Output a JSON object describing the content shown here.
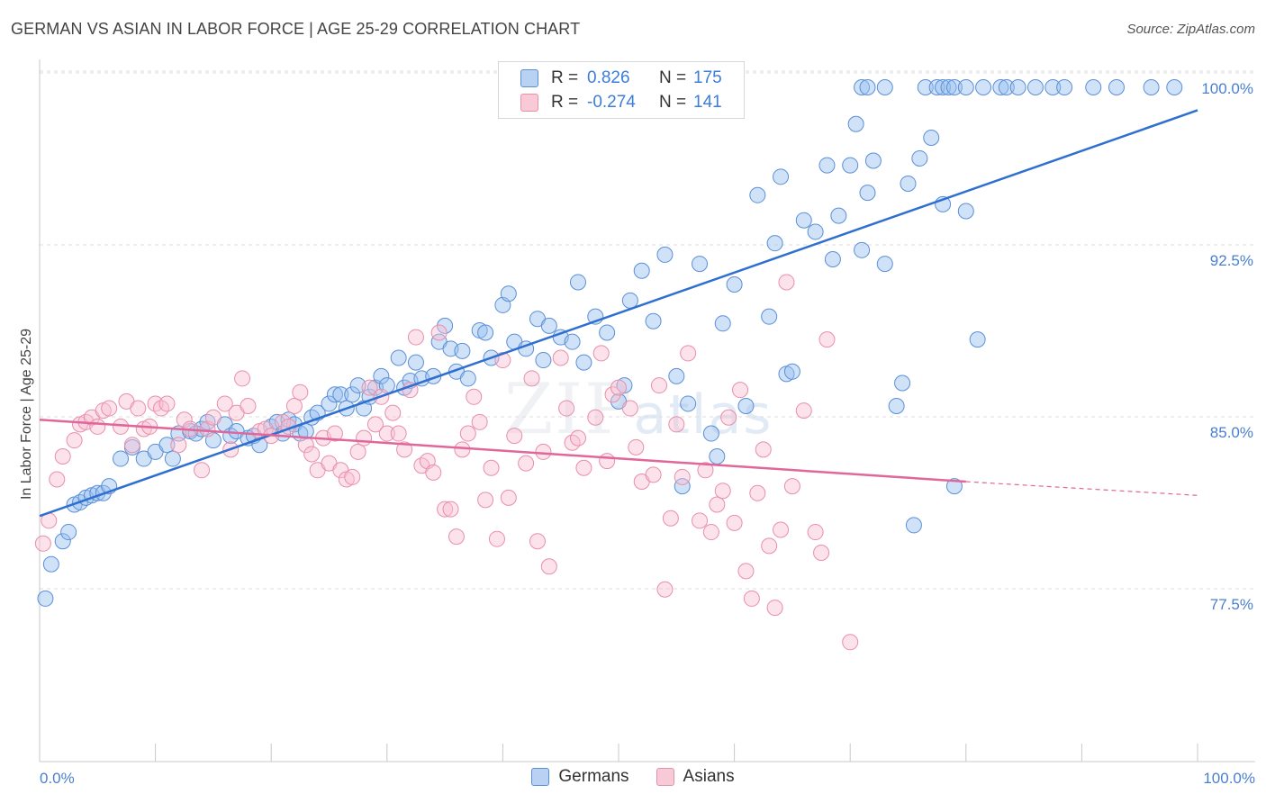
{
  "title": "GERMAN VS ASIAN IN LABOR FORCE | AGE 25-29 CORRELATION CHART",
  "source": "Source: ZipAtlas.com",
  "watermark": {
    "zip": "ZIP",
    "atlas": "atlas"
  },
  "stats": [
    {
      "r_label": "R =",
      "r_value": "0.826",
      "n_label": "N =",
      "n_value": "175",
      "color": "#5b8fd6",
      "fill": "#b9d1f2"
    },
    {
      "r_label": "R =",
      "r_value": "-0.274",
      "n_label": "N =",
      "n_value": "141",
      "color": "#e88fa9",
      "fill": "#f8cad8"
    }
  ],
  "legend": [
    {
      "label": "Germans",
      "color": "#5b8fd6",
      "fill": "#b9d1f2"
    },
    {
      "label": "Asians",
      "color": "#e88fa9",
      "fill": "#f8cad8"
    }
  ],
  "chart_data": {
    "type": "scatter",
    "title": "GERMAN VS ASIAN IN LABOR FORCE | AGE 25-29 CORRELATION CHART",
    "xlabel": "",
    "ylabel": "In Labor Force | Age 25-29",
    "xlim": [
      0,
      100
    ],
    "ylim": [
      71.5,
      100.8
    ],
    "x_tick_labels": [
      "0.0%",
      "100.0%"
    ],
    "y_ticks": [
      77.5,
      85.0,
      92.5,
      100.0
    ],
    "y_tick_labels": [
      "77.5%",
      "85.0%",
      "92.5%",
      "100.0%"
    ],
    "grid": "horizontal dashed",
    "colors": {
      "germans": "#3b7dd8",
      "asians": "#e0679a"
    },
    "series": [
      {
        "name": "Germans",
        "trend": {
          "x": [
            0,
            100
          ],
          "y": [
            81.3,
            99.0
          ]
        },
        "points": [
          [
            0.5,
            77.7
          ],
          [
            1.0,
            79.2
          ],
          [
            2.0,
            80.2
          ],
          [
            2.5,
            80.6
          ],
          [
            3.0,
            81.8
          ],
          [
            3.5,
            81.9
          ],
          [
            4.0,
            82.1
          ],
          [
            4.5,
            82.2
          ],
          [
            5.0,
            82.3
          ],
          [
            5.5,
            82.3
          ],
          [
            6.0,
            82.6
          ],
          [
            7.0,
            83.8
          ],
          [
            8.0,
            84.3
          ],
          [
            9.0,
            83.8
          ],
          [
            10.0,
            84.1
          ],
          [
            11.0,
            84.4
          ],
          [
            11.5,
            83.8
          ],
          [
            12.0,
            84.9
          ],
          [
            13.0,
            85.0
          ],
          [
            13.5,
            84.9
          ],
          [
            14.0,
            85.1
          ],
          [
            14.5,
            85.4
          ],
          [
            15.0,
            84.6
          ],
          [
            16.0,
            85.3
          ],
          [
            16.5,
            84.8
          ],
          [
            17.0,
            85.0
          ],
          [
            18.0,
            84.7
          ],
          [
            18.5,
            84.8
          ],
          [
            19.0,
            84.4
          ],
          [
            20.0,
            85.2
          ],
          [
            20.5,
            85.4
          ],
          [
            21.0,
            84.9
          ],
          [
            21.5,
            85.5
          ],
          [
            22.0,
            85.3
          ],
          [
            22.5,
            84.9
          ],
          [
            23.0,
            85.0
          ],
          [
            23.5,
            85.6
          ],
          [
            24.0,
            85.8
          ],
          [
            25.0,
            86.2
          ],
          [
            25.5,
            86.6
          ],
          [
            26.0,
            86.6
          ],
          [
            26.5,
            86.0
          ],
          [
            27.0,
            86.6
          ],
          [
            27.5,
            87.0
          ],
          [
            28.0,
            86.0
          ],
          [
            28.5,
            86.5
          ],
          [
            29.0,
            86.9
          ],
          [
            29.5,
            87.4
          ],
          [
            30.0,
            87.0
          ],
          [
            31.0,
            88.2
          ],
          [
            31.5,
            86.9
          ],
          [
            32.0,
            87.2
          ],
          [
            32.5,
            88.0
          ],
          [
            33.0,
            87.3
          ],
          [
            34.0,
            87.4
          ],
          [
            34.5,
            88.9
          ],
          [
            35.0,
            89.6
          ],
          [
            35.5,
            88.6
          ],
          [
            36.0,
            87.6
          ],
          [
            36.5,
            88.5
          ],
          [
            37.0,
            87.3
          ],
          [
            38.0,
            89.4
          ],
          [
            38.5,
            89.3
          ],
          [
            39.0,
            88.2
          ],
          [
            40.0,
            90.5
          ],
          [
            40.5,
            91.0
          ],
          [
            41.0,
            88.9
          ],
          [
            42.0,
            88.6
          ],
          [
            43.0,
            89.9
          ],
          [
            43.5,
            88.1
          ],
          [
            44.0,
            89.6
          ],
          [
            45.0,
            89.1
          ],
          [
            46.0,
            88.9
          ],
          [
            46.5,
            91.5
          ],
          [
            47.0,
            88.0
          ],
          [
            48.0,
            90.0
          ],
          [
            49.0,
            89.3
          ],
          [
            50.0,
            86.3
          ],
          [
            50.5,
            87.0
          ],
          [
            51.0,
            90.7
          ],
          [
            52.0,
            92.0
          ],
          [
            53.0,
            89.8
          ],
          [
            54.0,
            92.7
          ],
          [
            55.0,
            87.4
          ],
          [
            55.5,
            82.6
          ],
          [
            56.0,
            86.2
          ],
          [
            57.0,
            92.3
          ],
          [
            58.0,
            84.9
          ],
          [
            58.5,
            83.9
          ],
          [
            59.0,
            89.7
          ],
          [
            60.0,
            91.4
          ],
          [
            61.0,
            86.1
          ],
          [
            62.0,
            95.3
          ],
          [
            63.0,
            90.0
          ],
          [
            63.5,
            93.2
          ],
          [
            64.0,
            96.1
          ],
          [
            64.5,
            87.5
          ],
          [
            65.0,
            87.6
          ],
          [
            66.0,
            94.2
          ],
          [
            67.0,
            93.7
          ],
          [
            68.0,
            96.6
          ],
          [
            68.5,
            92.5
          ],
          [
            69.0,
            94.4
          ],
          [
            70.0,
            96.6
          ],
          [
            70.5,
            98.4
          ],
          [
            71.0,
            92.9
          ],
          [
            71.5,
            95.4
          ],
          [
            72.0,
            96.8
          ],
          [
            73.0,
            92.3
          ],
          [
            74.0,
            86.1
          ],
          [
            74.5,
            87.1
          ],
          [
            75.0,
            95.8
          ],
          [
            75.5,
            80.9
          ],
          [
            76.0,
            96.9
          ],
          [
            77.0,
            97.8
          ],
          [
            78.0,
            94.9
          ],
          [
            79.0,
            82.6
          ],
          [
            80.0,
            94.6
          ],
          [
            81.0,
            89.0
          ],
          [
            71.0,
            100.0
          ],
          [
            71.5,
            100.0
          ],
          [
            73.0,
            100.0
          ],
          [
            76.5,
            100.0
          ],
          [
            77.5,
            100.0
          ],
          [
            78.0,
            100.0
          ],
          [
            78.5,
            100.0
          ],
          [
            79.0,
            100.0
          ],
          [
            80.0,
            100.0
          ],
          [
            81.5,
            100.0
          ],
          [
            83.0,
            100.0
          ],
          [
            83.5,
            100.0
          ],
          [
            84.5,
            100.0
          ],
          [
            86.0,
            100.0
          ],
          [
            87.5,
            100.0
          ],
          [
            88.5,
            100.0
          ],
          [
            91.0,
            100.0
          ],
          [
            93.0,
            100.0
          ],
          [
            96.0,
            100.0
          ],
          [
            98.0,
            100.0
          ]
        ]
      },
      {
        "name": "Asians",
        "trend": {
          "x": [
            0,
            80
          ],
          "y": [
            85.5,
            82.8
          ]
        },
        "trend_dashed": {
          "x": [
            80,
            100
          ],
          "y": [
            82.8,
            82.2
          ]
        },
        "points": [
          [
            0.3,
            80.1
          ],
          [
            0.8,
            81.1
          ],
          [
            1.5,
            82.9
          ],
          [
            2.0,
            83.9
          ],
          [
            3.0,
            84.6
          ],
          [
            3.5,
            85.3
          ],
          [
            4.0,
            85.4
          ],
          [
            4.5,
            85.6
          ],
          [
            5.0,
            85.2
          ],
          [
            5.5,
            85.9
          ],
          [
            6.0,
            86.0
          ],
          [
            7.0,
            85.2
          ],
          [
            7.5,
            86.3
          ],
          [
            8.0,
            84.4
          ],
          [
            8.5,
            86.0
          ],
          [
            9.0,
            85.1
          ],
          [
            9.5,
            85.2
          ],
          [
            10.0,
            86.2
          ],
          [
            10.5,
            86.0
          ],
          [
            11.0,
            86.2
          ],
          [
            12.0,
            84.4
          ],
          [
            12.5,
            85.5
          ],
          [
            13.0,
            85.1
          ],
          [
            14.0,
            83.3
          ],
          [
            14.5,
            85.1
          ],
          [
            15.0,
            85.6
          ],
          [
            16.0,
            86.2
          ],
          [
            16.5,
            84.2
          ],
          [
            17.0,
            85.8
          ],
          [
            17.5,
            87.3
          ],
          [
            18.0,
            86.1
          ],
          [
            19.0,
            85.0
          ],
          [
            19.5,
            85.1
          ],
          [
            20.0,
            84.8
          ],
          [
            21.0,
            85.4
          ],
          [
            21.5,
            85.2
          ],
          [
            22.0,
            86.1
          ],
          [
            22.5,
            86.7
          ],
          [
            23.0,
            84.4
          ],
          [
            23.5,
            84.0
          ],
          [
            24.0,
            83.3
          ],
          [
            24.5,
            84.7
          ],
          [
            25.0,
            83.6
          ],
          [
            25.5,
            84.9
          ],
          [
            26.0,
            83.3
          ],
          [
            26.5,
            82.9
          ],
          [
            27.0,
            83.0
          ],
          [
            27.5,
            84.1
          ],
          [
            28.0,
            84.7
          ],
          [
            28.5,
            86.9
          ],
          [
            29.0,
            85.3
          ],
          [
            29.5,
            86.5
          ],
          [
            30.0,
            84.9
          ],
          [
            30.5,
            85.8
          ],
          [
            31.0,
            84.9
          ],
          [
            31.5,
            84.2
          ],
          [
            32.0,
            86.8
          ],
          [
            32.5,
            89.1
          ],
          [
            33.0,
            83.5
          ],
          [
            33.5,
            83.7
          ],
          [
            34.0,
            83.2
          ],
          [
            34.5,
            89.3
          ],
          [
            35.0,
            81.6
          ],
          [
            35.5,
            81.6
          ],
          [
            36.0,
            80.4
          ],
          [
            36.5,
            84.2
          ],
          [
            37.0,
            84.9
          ],
          [
            37.5,
            86.5
          ],
          [
            38.0,
            85.4
          ],
          [
            38.5,
            82.0
          ],
          [
            39.0,
            83.4
          ],
          [
            39.5,
            80.3
          ],
          [
            40.0,
            88.1
          ],
          [
            40.5,
            82.1
          ],
          [
            41.0,
            84.8
          ],
          [
            42.0,
            83.6
          ],
          [
            42.5,
            87.3
          ],
          [
            43.0,
            80.2
          ],
          [
            43.5,
            84.1
          ],
          [
            44.0,
            79.1
          ],
          [
            45.0,
            88.2
          ],
          [
            45.5,
            86.0
          ],
          [
            46.0,
            84.5
          ],
          [
            46.5,
            84.7
          ],
          [
            47.0,
            83.4
          ],
          [
            48.0,
            85.6
          ],
          [
            48.5,
            88.4
          ],
          [
            49.0,
            83.7
          ],
          [
            49.5,
            86.6
          ],
          [
            50.0,
            86.9
          ],
          [
            51.0,
            86.0
          ],
          [
            51.5,
            84.3
          ],
          [
            52.0,
            82.8
          ],
          [
            53.0,
            83.1
          ],
          [
            53.5,
            87.0
          ],
          [
            54.0,
            78.1
          ],
          [
            54.5,
            81.2
          ],
          [
            55.0,
            85.3
          ],
          [
            55.5,
            83.0
          ],
          [
            56.0,
            88.4
          ],
          [
            57.0,
            81.1
          ],
          [
            57.5,
            83.3
          ],
          [
            58.0,
            80.6
          ],
          [
            58.5,
            81.8
          ],
          [
            59.0,
            82.4
          ],
          [
            59.5,
            85.6
          ],
          [
            60.0,
            81.0
          ],
          [
            60.5,
            86.8
          ],
          [
            61.0,
            78.9
          ],
          [
            61.5,
            77.7
          ],
          [
            62.0,
            82.3
          ],
          [
            62.5,
            84.2
          ],
          [
            63.0,
            80.0
          ],
          [
            63.5,
            77.3
          ],
          [
            64.0,
            80.7
          ],
          [
            64.5,
            91.5
          ],
          [
            65.0,
            82.6
          ],
          [
            66.0,
            85.9
          ],
          [
            67.0,
            80.6
          ],
          [
            67.5,
            79.7
          ],
          [
            68.0,
            89.0
          ],
          [
            70.0,
            75.8
          ]
        ]
      }
    ]
  }
}
